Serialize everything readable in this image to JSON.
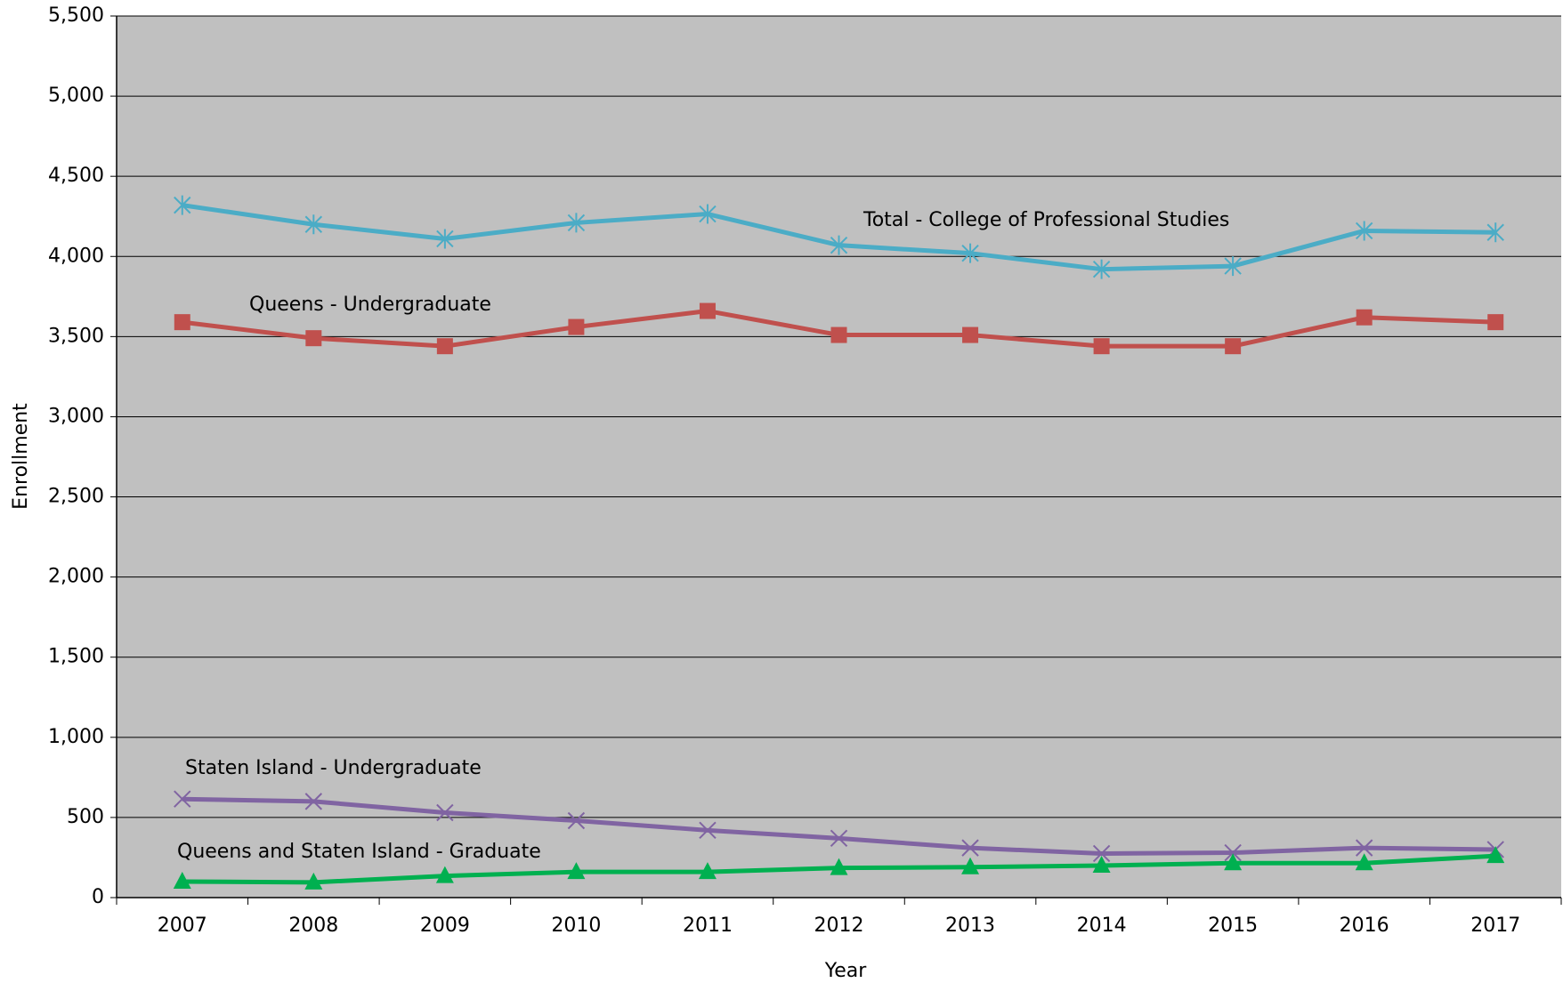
{
  "chart_data": {
    "type": "line",
    "x_label": "Year",
    "y_label": "Enrollment",
    "categories": [
      "2007",
      "2008",
      "2009",
      "2010",
      "2011",
      "2012",
      "2013",
      "2014",
      "2015",
      "2016",
      "2017"
    ],
    "series": [
      {
        "name": "Total - College of Professional Studies",
        "color": "#4bacc6",
        "marker": "asterisk",
        "values": [
          4320,
          4200,
          4110,
          4210,
          4265,
          4070,
          4020,
          3920,
          3940,
          4160,
          4150
        ]
      },
      {
        "name": "Queens - Undergraduate",
        "color": "#c0504d",
        "marker": "square",
        "values": [
          3590,
          3490,
          3440,
          3560,
          3660,
          3510,
          3510,
          3440,
          3440,
          3620,
          3590
        ]
      },
      {
        "name": "Staten Island - Undergraduate",
        "color": "#8064a2",
        "marker": "x",
        "values": [
          615,
          600,
          530,
          480,
          420,
          370,
          310,
          275,
          280,
          310,
          300
        ]
      },
      {
        "name": "Queens and Staten Island - Graduate",
        "color": "#00b050",
        "marker": "triangle",
        "values": [
          100,
          95,
          135,
          160,
          160,
          185,
          190,
          200,
          215,
          215,
          260
        ]
      }
    ],
    "ylim": [
      0,
      5500
    ],
    "yticks": [
      0,
      500,
      {
        "value": 1000,
        "label": "1,000"
      },
      {
        "value": 1500,
        "label": "1,500"
      },
      {
        "value": 2000,
        "label": "2,000"
      },
      {
        "value": 2500,
        "label": "2,500"
      },
      {
        "value": 3000,
        "label": "3,000"
      },
      {
        "value": 3500,
        "label": "3,500"
      },
      {
        "value": 4000,
        "label": "4,000"
      },
      {
        "value": 4500,
        "label": "4,500"
      },
      {
        "value": 5000,
        "label": "5,000"
      },
      {
        "value": 5500,
        "label": "5,500"
      }
    ],
    "grid": true,
    "background": "#c0c0c0"
  }
}
